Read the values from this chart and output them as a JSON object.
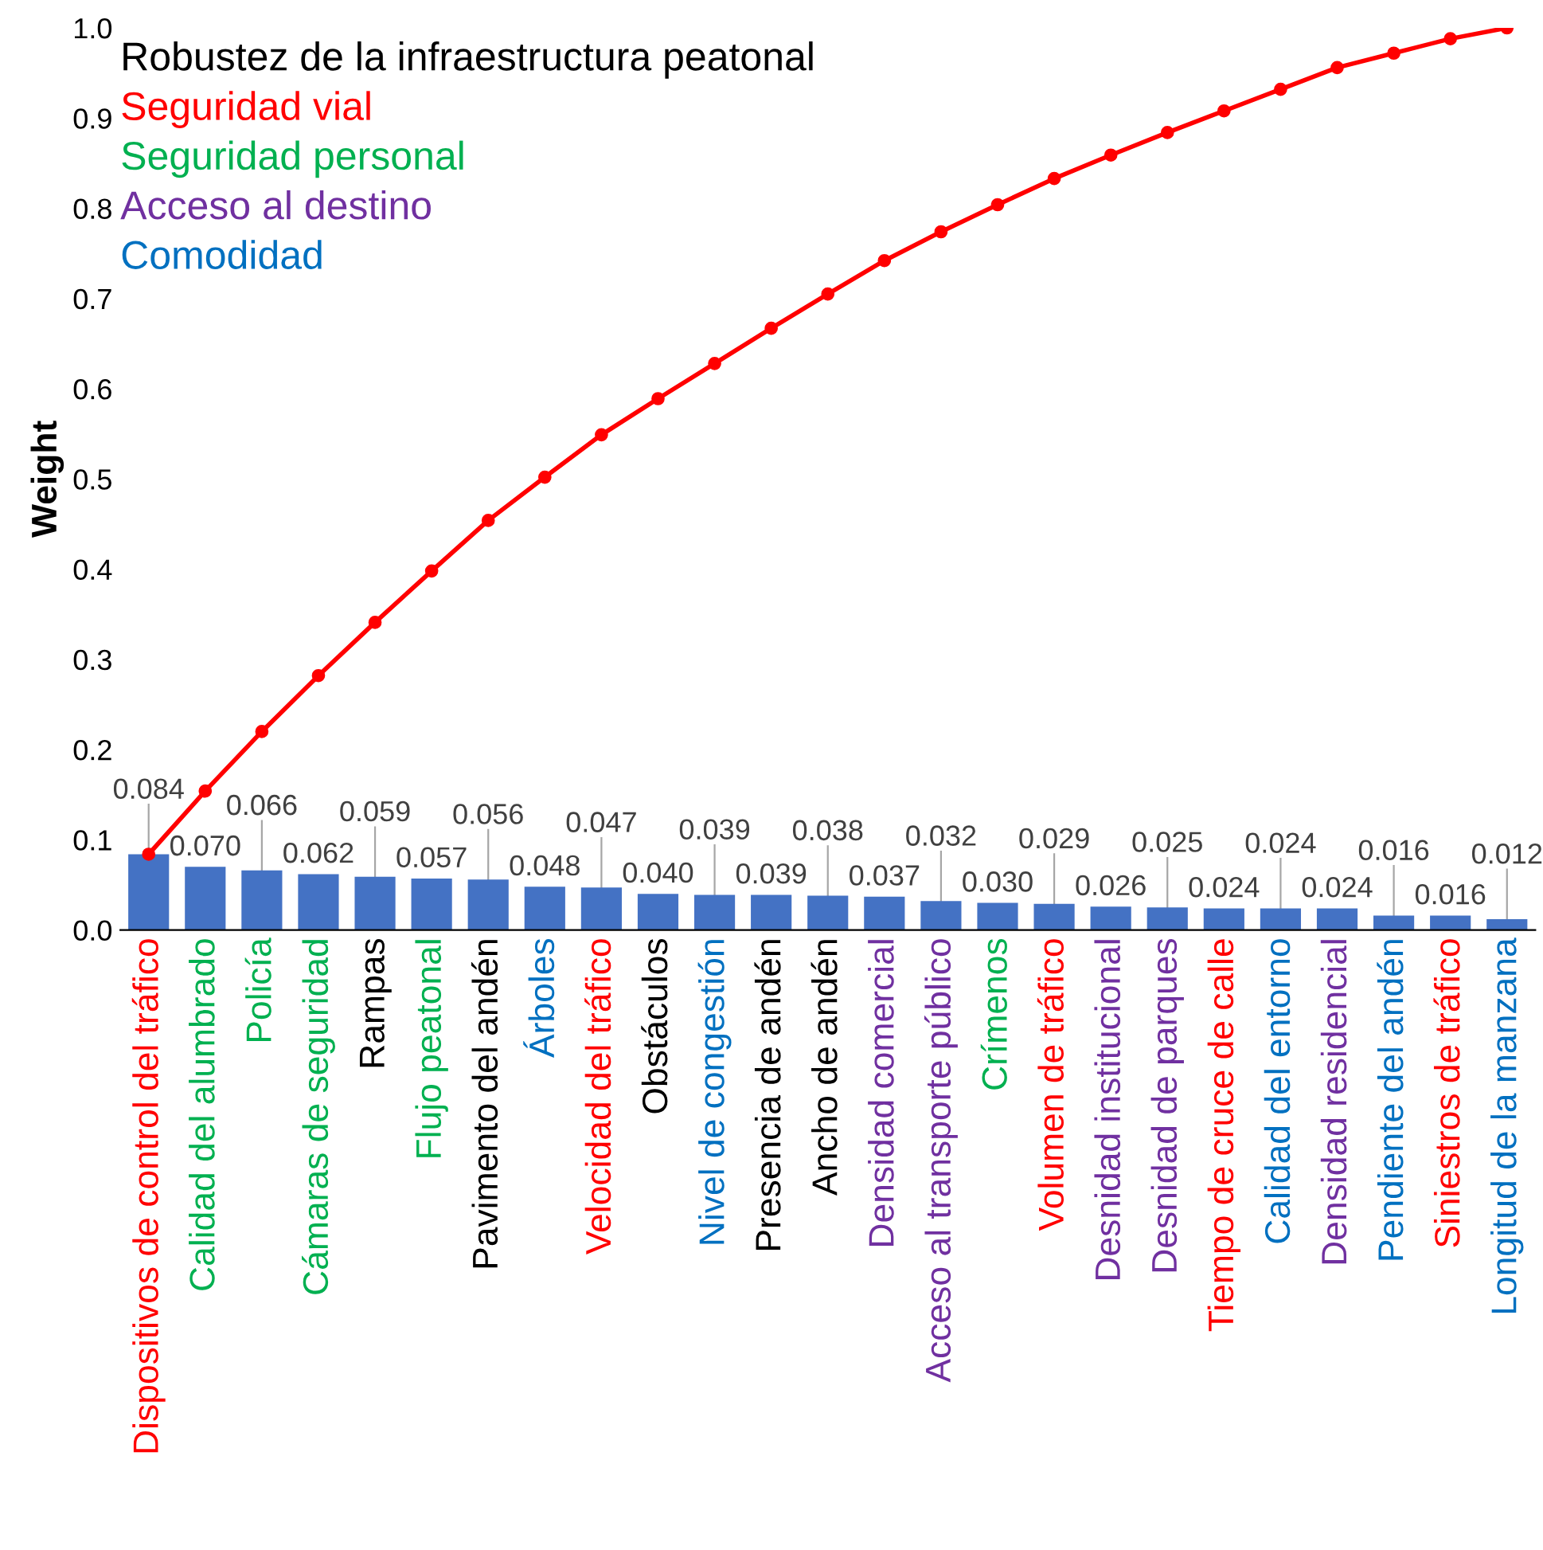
{
  "chart_data": {
    "type": "bar",
    "categories": [
      "Dispositivos de control del tráfico",
      "Calidad del alumbrado",
      "Policía",
      "Cámaras de seguridad",
      "Rampas",
      "Flujo peatonal",
      "Pavimento del andén",
      "Árboles",
      "Velocidad del tráfico",
      "Obstáculos",
      "Nivel de congestión",
      "Presencia de andén",
      "Ancho de andén",
      "Densidad comercial",
      "Acceso al transporte público",
      "Crímenos",
      "Volumen de tráfico",
      "Desnidad institucional",
      "Desnidad de parques",
      "Tiempo de cruce de calle",
      "Calidad del entorno",
      "Densidad residencial",
      "Pendiente del andén",
      "Siniestros de tráfico",
      "Longitud de la manzana"
    ],
    "series": [
      {
        "color": "#4472c4",
        "values": [
          0.084,
          0.07,
          0.066,
          0.062,
          0.059,
          0.057,
          0.056,
          0.048,
          0.047,
          0.04,
          0.039,
          0.039,
          0.038,
          0.037,
          0.032,
          0.03,
          0.029,
          0.026,
          0.025,
          0.024,
          0.024,
          0.024,
          0.016,
          0.016,
          0.012
        ],
        "value_labels": [
          "0.084",
          "0.070",
          "0.066",
          "0.062",
          "0.059",
          "0.057",
          "0.056",
          "0.048",
          "0.047",
          "0.040",
          "0.039",
          "0.039",
          "0.038",
          "0.037",
          "0.032",
          "0.030",
          "0.029",
          "0.026",
          "0.025",
          "0.024",
          "0.024",
          "0.024",
          "0.016",
          "0.016",
          "0.012"
        ]
      },
      {
        "type": "line",
        "color": "#ff0000",
        "marker": "circle",
        "values": [
          0.084,
          0.154,
          0.22,
          0.282,
          0.341,
          0.398,
          0.454,
          0.502,
          0.549,
          0.589,
          0.628,
          0.667,
          0.705,
          0.742,
          0.774,
          0.804,
          0.833,
          0.859,
          0.884,
          0.908,
          0.932,
          0.956,
          0.972,
          0.988,
          1.0
        ]
      }
    ],
    "ylabel": "Weight",
    "ylim": [
      0,
      1.0
    ],
    "yticks": [
      {
        "value": 0,
        "label": "0.0"
      },
      {
        "value": 0.1,
        "label": "0.1"
      },
      {
        "value": 0.2,
        "label": "0.2"
      },
      {
        "value": 0.3,
        "label": "0.3"
      },
      {
        "value": 0.4,
        "label": "0.4"
      },
      {
        "value": 0.5,
        "label": "0.5"
      },
      {
        "value": 0.6,
        "label": "0.6"
      },
      {
        "value": 0.7,
        "label": "0.7"
      },
      {
        "value": 0.8,
        "label": "0.8"
      },
      {
        "value": 0.9,
        "label": "0.9"
      },
      {
        "value": 1.0,
        "label": "1.0"
      }
    ],
    "annotations": [
      "Robustez de la infraestructura peatonal",
      "Seguridad vial",
      "Seguridad personal",
      "Acceso al destino",
      "Comodidad"
    ],
    "grid": false,
    "legend": false
  }
}
